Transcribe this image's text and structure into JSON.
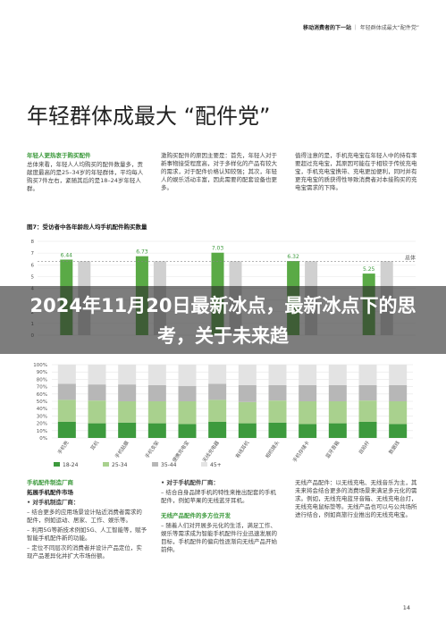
{
  "header": {
    "section": "移动消费者的下一站",
    "title": "年轻群体成最大“配件党”"
  },
  "title": "年轻群体成最大 “配件党”",
  "intro": {
    "heading": "年轻人更热衷于购买配件",
    "columns": [
      "总体来看，年轻人人均购买的配件数量多，贡献度最高的是25–34岁的年轻群体，平均每人购买7件左右，紧随其后的是18–24岁年轻人群。",
      "激购买配件的原因主要是：首先，年轻人对于新事物接受程度高，对于多样化的产品有较大的需求，对于配件价格认知较强；其次，年轻人的娱乐活动丰富，因此需要的配套设备也更多。",
      "值得注意的是，手机充电宝在年轻人中的持有率要超过充电宝，其原因可能在于相较于传统充电宝，手机充电宝携带、充电更加便利，同时并有更充电宝的质获得性导致消费者对本接购买的充电宝需求的下降。"
    ]
  },
  "figure7": {
    "type": "bar",
    "title": "图7：受访者中各年龄段人均手机配件购买数量",
    "values": [
      6.44,
      6.73,
      7.03,
      6.32,
      5.25
    ],
    "color": "#5aaa46",
    "overall": 6.3,
    "overall_label": "总体",
    "ylim": [
      0,
      8
    ],
    "yticks": [
      0,
      1,
      2,
      3,
      4,
      5,
      6,
      7,
      8
    ]
  },
  "banner": "2024年11月20日最新冰点，最新冰点下的思考，关于未来趋",
  "figure8": {
    "type": "bar",
    "stacked": true,
    "categories": [
      "手机壳",
      "耳机",
      "手机贴膜",
      "手机支架",
      "便携充电宝",
      "无线充电器",
      "有线耳机",
      "相机镜头",
      "手机存储卡",
      "蓝牙音箱",
      "自拍杆",
      "数据线"
    ],
    "series": [
      {
        "name": "18-24",
        "color": "#3d9a3d",
        "values": [
          22,
          20,
          21,
          20,
          19,
          22,
          20,
          21,
          19,
          20,
          22,
          19
        ]
      },
      {
        "name": "25-34",
        "color": "#a9d18e",
        "values": [
          30,
          31,
          29,
          30,
          31,
          30,
          29,
          30,
          31,
          30,
          29,
          31
        ]
      },
      {
        "name": "35-44",
        "color": "#b7b7b7",
        "values": [
          22,
          22,
          23,
          22,
          21,
          22,
          23,
          21,
          22,
          22,
          21,
          22
        ]
      },
      {
        "name": "45+",
        "color": "#e3e3e3",
        "values": [
          26,
          27,
          27,
          28,
          29,
          26,
          28,
          28,
          28,
          28,
          28,
          28
        ]
      }
    ],
    "ylim": [
      0,
      100
    ],
    "yticks": [
      {
        "value": 0,
        "label": "0%"
      },
      {
        "value": 10,
        "label": "10%"
      },
      {
        "value": 20,
        "label": "20%"
      },
      {
        "value": 30,
        "label": "30%"
      },
      {
        "value": 40,
        "label": "40%"
      },
      {
        "value": 50,
        "label": "50%"
      },
      {
        "value": 60,
        "label": "60%"
      },
      {
        "value": 70,
        "label": "70%"
      },
      {
        "value": 80,
        "label": "80%"
      },
      {
        "value": 90,
        "label": "90%"
      },
      {
        "value": 100,
        "label": "100%"
      }
    ]
  },
  "bottom": {
    "heading": "手机配件制造厂商",
    "subheading": "拓展手机配件市场",
    "left": [
      "• 对手机制造厂商：",
      "– 结合更多的应用场景设计贴近消费者需求的配件，例如运动、居家、工作、娱乐等。",
      "– 利用5G等新技术例如5G、人工智能等，赋予智能手机配件新的功能。",
      "– 定位不同层次的消费者并设计产品定位，实现产品差异化并扩大市场份额。"
    ],
    "middle": [
      "• 对于手机配件厂商：",
      "– 结合自身品牌手机的特性来推出配套的手机配件，例如苹果的无线蓝牙耳机。",
      "无线产品配件的多方位开发",
      "– 随着人们对开展多元化的生活，满足工作、娱乐等需求成为智能手机配件行业迅速发展的目标，手机配件的偏向性逐渐向无线产品开始前伸。"
    ],
    "right": [
      "无线产品配件：以无线充电、无线音乐为主，其未来将会结合更多的消费场景来满足多元化的需求。例如，无线充电蓝牙音箱、无线充电台灯，无线充电鼠标垫等。无线产品也可以与公共场所进行结合，例如商旅行业推出的无线充电宝。"
    ],
    "page": "14"
  }
}
